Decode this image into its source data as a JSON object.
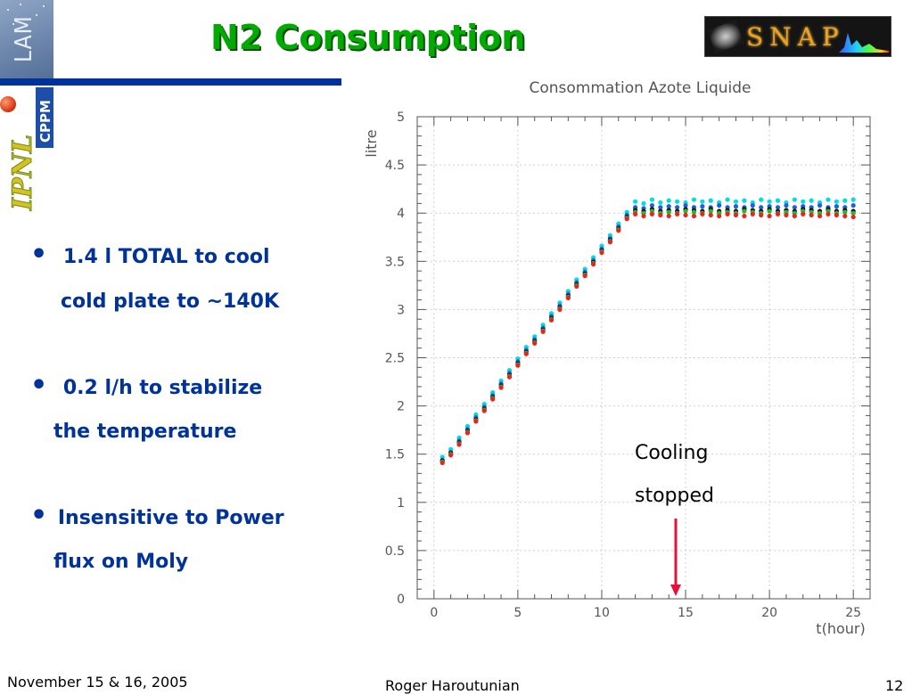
{
  "slide": {
    "title": "N2 Consumption",
    "logos": {
      "lam": "LAM",
      "cppm": "CPPM",
      "ipnl": "IPNL",
      "snap": "SNAP"
    },
    "bullets": [
      {
        "lines": [
          "1.4 l TOTAL to cool",
          "cold   plate to ~140K"
        ]
      },
      {
        "lines": [
          "0.2  l/h to stabilize",
          "the  temperature"
        ]
      },
      {
        "lines": [
          "Insensitive to Power",
          "flux  on Moly"
        ]
      }
    ],
    "annotation": {
      "line1": "Cooling",
      "line2": "stopped",
      "arrow_color": "#e8103a"
    },
    "footer": {
      "date": "November 15 & 16, 2005",
      "author": "Roger Haroutunian",
      "page": "12"
    },
    "colors": {
      "title": "#00aa00",
      "title_shadow": "#0a4d0a",
      "bullet_text": "#003399",
      "bar": "#003399"
    }
  },
  "chart_data": {
    "type": "scatter",
    "title": "Consommation Azote Liquide",
    "xlabel": "t(hour)",
    "ylabel": "litre",
    "xlim": [
      -1,
      26
    ],
    "ylim": [
      0,
      5
    ],
    "x_ticks": [
      0,
      5,
      10,
      15,
      20,
      25
    ],
    "y_ticks": [
      0,
      0.5,
      1,
      1.5,
      2,
      2.5,
      3,
      3.5,
      4,
      4.5,
      5
    ],
    "x_tick_labels": [
      "0",
      "5",
      "10",
      "15",
      "20",
      "25"
    ],
    "y_tick_labels": [
      "0",
      "0.5",
      "1",
      "1.5",
      "2",
      "2.5",
      "3",
      "3.5",
      "4",
      "4.5",
      "5"
    ],
    "grid": true,
    "legend": "none",
    "series": [
      {
        "color": "#00dddd",
        "x": [
          0.5,
          1,
          1.5,
          2,
          2.5,
          3,
          3.5,
          4,
          4.5,
          5,
          5.5,
          6,
          6.5,
          7,
          7.5,
          8,
          8.5,
          9,
          9.5,
          10,
          10.5,
          11,
          11.5,
          12,
          12.5,
          13,
          13.5,
          14,
          14.5,
          15,
          15.5,
          16,
          16.5,
          17,
          17.5,
          18,
          18.5,
          19,
          19.5,
          20,
          20.5,
          21,
          21.5,
          22,
          22.5,
          23,
          23.5,
          24,
          24.5,
          25
        ],
        "y": [
          1.47,
          1.55,
          1.67,
          1.79,
          1.91,
          2.02,
          2.14,
          2.26,
          2.37,
          2.49,
          2.61,
          2.72,
          2.84,
          2.96,
          3.07,
          3.19,
          3.31,
          3.42,
          3.54,
          3.66,
          3.77,
          3.89,
          4.01,
          4.12,
          4.1,
          4.14,
          4.11,
          4.13,
          4.12,
          4.11,
          4.14,
          4.12,
          4.13,
          4.11,
          4.14,
          4.12,
          4.13,
          4.11,
          4.14,
          4.12,
          4.13,
          4.11,
          4.14,
          4.12,
          4.13,
          4.11,
          4.14,
          4.12,
          4.13,
          4.14
        ]
      },
      {
        "color": "#1f5fe0",
        "x": [
          0.5,
          1,
          1.5,
          2,
          2.5,
          3,
          3.5,
          4,
          4.5,
          5,
          5.5,
          6,
          6.5,
          7,
          7.5,
          8,
          8.5,
          9,
          9.5,
          10,
          10.5,
          11,
          11.5,
          12,
          12.5,
          13,
          13.5,
          14,
          14.5,
          15,
          15.5,
          16,
          16.5,
          17,
          17.5,
          18,
          18.5,
          19,
          19.5,
          20,
          20.5,
          21,
          21.5,
          22,
          22.5,
          23,
          23.5,
          24,
          24.5,
          25
        ],
        "y": [
          1.44,
          1.52,
          1.64,
          1.76,
          1.88,
          1.99,
          2.11,
          2.23,
          2.34,
          2.46,
          2.58,
          2.69,
          2.81,
          2.93,
          3.04,
          3.16,
          3.28,
          3.39,
          3.51,
          3.63,
          3.74,
          3.86,
          3.98,
          4.06,
          4.05,
          4.08,
          4.06,
          4.07,
          4.06,
          4.08,
          4.06,
          4.07,
          4.06,
          4.08,
          4.06,
          4.07,
          4.06,
          4.08,
          4.06,
          4.07,
          4.06,
          4.08,
          4.06,
          4.07,
          4.06,
          4.08,
          4.06,
          4.07,
          4.06,
          4.08
        ]
      },
      {
        "color": "#111111",
        "x": [
          0.5,
          1,
          1.5,
          2,
          2.5,
          3,
          3.5,
          4,
          4.5,
          5,
          5.5,
          6,
          6.5,
          7,
          7.5,
          8,
          8.5,
          9,
          9.5,
          10,
          10.5,
          11,
          11.5,
          12,
          12.5,
          13,
          13.5,
          14,
          14.5,
          15,
          15.5,
          16,
          16.5,
          17,
          17.5,
          18,
          18.5,
          19,
          19.5,
          20,
          20.5,
          21,
          21.5,
          22,
          22.5,
          23,
          23.5,
          24,
          24.5,
          25
        ],
        "y": [
          1.43,
          1.51,
          1.62,
          1.74,
          1.86,
          1.97,
          2.09,
          2.21,
          2.32,
          2.44,
          2.56,
          2.67,
          2.79,
          2.91,
          3.02,
          3.14,
          3.26,
          3.37,
          3.49,
          3.61,
          3.72,
          3.84,
          3.96,
          4.03,
          4.02,
          4.04,
          4.02,
          4.03,
          4.02,
          4.04,
          4.03,
          4.02,
          4.04,
          4.02,
          4.03,
          4.02,
          4.04,
          4.03,
          4.02,
          4.04,
          4.02,
          4.03,
          4.02,
          4.04,
          4.03,
          4.02,
          4.04,
          4.02,
          4.03,
          4.02
        ]
      },
      {
        "color": "#22bb22",
        "x": [
          0.5,
          1,
          1.5,
          2,
          2.5,
          3,
          3.5,
          4,
          4.5,
          5,
          5.5,
          6,
          6.5,
          7,
          7.5,
          8,
          8.5,
          9,
          9.5,
          10,
          10.5,
          11,
          11.5,
          12,
          12.5,
          13,
          13.5,
          14,
          14.5,
          15,
          15.5,
          16,
          16.5,
          17,
          17.5,
          18,
          18.5,
          19,
          19.5,
          20,
          20.5,
          21,
          21.5,
          22,
          22.5,
          23,
          23.5,
          24,
          24.5,
          25
        ],
        "y": [
          1.42,
          1.5,
          1.61,
          1.73,
          1.85,
          1.96,
          2.08,
          2.2,
          2.31,
          2.43,
          2.55,
          2.66,
          2.78,
          2.9,
          3.01,
          3.13,
          3.25,
          3.36,
          3.48,
          3.6,
          3.71,
          3.83,
          3.95,
          4.01,
          4.0,
          4.02,
          4.0,
          4.01,
          4.0,
          4.02,
          4.01,
          4.0,
          4.02,
          4.0,
          4.01,
          4.0,
          4.02,
          4.01,
          4.0,
          4.02,
          4.0,
          4.01,
          4.0,
          4.02,
          4.01,
          4.0,
          4.02,
          4.0,
          4.01,
          4.0
        ]
      },
      {
        "color": "#ee2020",
        "x": [
          0.5,
          1,
          1.5,
          2,
          2.5,
          3,
          3.5,
          4,
          4.5,
          5,
          5.5,
          6,
          6.5,
          7,
          7.5,
          8,
          8.5,
          9,
          9.5,
          10,
          10.5,
          11,
          11.5,
          12,
          12.5,
          13,
          13.5,
          14,
          14.5,
          15,
          15.5,
          16,
          16.5,
          17,
          17.5,
          18,
          18.5,
          19,
          19.5,
          20,
          20.5,
          21,
          21.5,
          22,
          22.5,
          23,
          23.5,
          24,
          24.5,
          25
        ],
        "y": [
          1.41,
          1.49,
          1.6,
          1.72,
          1.84,
          1.95,
          2.07,
          2.19,
          2.3,
          2.42,
          2.54,
          2.65,
          2.77,
          2.89,
          3.0,
          3.12,
          3.24,
          3.35,
          3.47,
          3.59,
          3.7,
          3.82,
          3.94,
          3.99,
          3.97,
          3.99,
          3.98,
          3.97,
          3.99,
          3.98,
          3.97,
          3.99,
          3.98,
          3.97,
          3.99,
          3.98,
          3.97,
          3.99,
          3.98,
          3.97,
          3.99,
          3.98,
          3.97,
          3.99,
          3.98,
          3.97,
          3.99,
          3.98,
          3.97,
          3.96
        ]
      }
    ]
  }
}
